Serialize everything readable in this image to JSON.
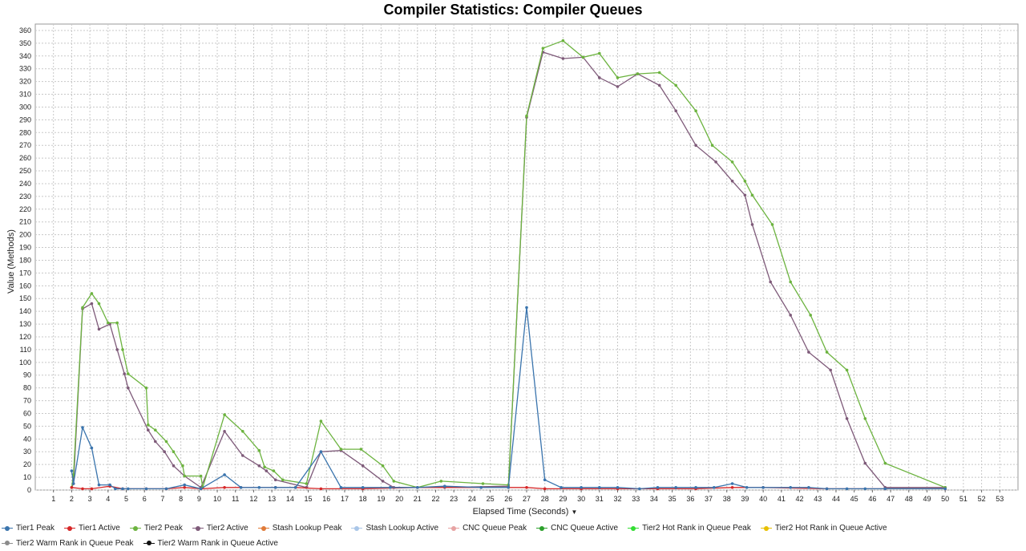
{
  "chart_data": {
    "type": "line",
    "title": "Compiler Statistics: Compiler Queues",
    "xlabel": "Elapsed Time (Seconds)",
    "ylabel": "Value (Methods)",
    "xlim": [
      0,
      54
    ],
    "ylim": [
      0,
      365
    ],
    "xticks": [
      1,
      2,
      3,
      4,
      5,
      6,
      7,
      8,
      9,
      10,
      11,
      12,
      13,
      14,
      15,
      16,
      17,
      18,
      19,
      20,
      21,
      22,
      23,
      24,
      25,
      26,
      27,
      28,
      29,
      30,
      31,
      32,
      33,
      34,
      35,
      36,
      37,
      38,
      39,
      40,
      41,
      42,
      43,
      44,
      45,
      46,
      47,
      48,
      49,
      50,
      51,
      52,
      53
    ],
    "yticks": [
      0,
      10,
      20,
      30,
      40,
      50,
      60,
      70,
      80,
      90,
      100,
      110,
      120,
      130,
      140,
      150,
      160,
      170,
      180,
      190,
      200,
      210,
      220,
      230,
      240,
      250,
      260,
      270,
      280,
      290,
      300,
      310,
      320,
      330,
      340,
      350,
      360
    ],
    "grid": true,
    "legend_position": "bottom",
    "series": [
      {
        "name": "Tier1 Peak",
        "color": "#3a74ad",
        "points": [
          [
            2.0,
            15
          ],
          [
            2.1,
            5
          ],
          [
            2.6,
            49
          ],
          [
            3.1,
            33
          ],
          [
            3.5,
            4
          ],
          [
            4.1,
            4
          ],
          [
            4.4,
            1
          ],
          [
            4.8,
            1
          ],
          [
            5.1,
            1
          ],
          [
            6.1,
            1
          ],
          [
            7.2,
            1
          ],
          [
            8.2,
            4
          ],
          [
            9.1,
            1
          ],
          [
            10.4,
            12
          ],
          [
            11.3,
            2
          ],
          [
            12.3,
            2
          ],
          [
            13.2,
            2
          ],
          [
            14.3,
            2
          ],
          [
            15.7,
            30
          ],
          [
            16.8,
            2
          ],
          [
            18,
            2
          ],
          [
            19.5,
            2
          ],
          [
            21,
            2
          ],
          [
            22.5,
            3
          ],
          [
            24.5,
            2
          ],
          [
            26,
            2
          ],
          [
            27,
            143
          ],
          [
            28,
            8
          ],
          [
            28.9,
            2
          ],
          [
            30,
            2
          ],
          [
            31,
            2
          ],
          [
            32,
            2
          ],
          [
            33.2,
            1
          ],
          [
            34.2,
            2
          ],
          [
            35.2,
            2
          ],
          [
            36.3,
            2
          ],
          [
            37.3,
            2
          ],
          [
            38.3,
            5
          ],
          [
            39.1,
            2
          ],
          [
            40,
            2
          ],
          [
            41.5,
            2
          ],
          [
            42.5,
            2
          ],
          [
            43.5,
            1
          ],
          [
            44.6,
            1
          ],
          [
            45.6,
            1
          ],
          [
            46.7,
            1
          ],
          [
            50,
            1
          ]
        ]
      },
      {
        "name": "Tier1 Active",
        "color": "#d62728",
        "points": [
          [
            2.0,
            2
          ],
          [
            2.6,
            1
          ],
          [
            3.1,
            1
          ],
          [
            4.1,
            3
          ],
          [
            4.8,
            1
          ],
          [
            6.1,
            1
          ],
          [
            7.2,
            1
          ],
          [
            8.2,
            2
          ],
          [
            9.1,
            1
          ],
          [
            10.4,
            2
          ],
          [
            11.3,
            2
          ],
          [
            13.2,
            2
          ],
          [
            14.3,
            2
          ],
          [
            15.7,
            1
          ],
          [
            18,
            1
          ],
          [
            21,
            2
          ],
          [
            24.5,
            2
          ],
          [
            26,
            2
          ],
          [
            27,
            2
          ],
          [
            28,
            1
          ],
          [
            30,
            1
          ],
          [
            32,
            1
          ],
          [
            34.2,
            1
          ],
          [
            36.3,
            1
          ],
          [
            38.3,
            2
          ],
          [
            40,
            2
          ],
          [
            43.5,
            1
          ],
          [
            46.7,
            1
          ],
          [
            50,
            1
          ]
        ]
      },
      {
        "name": "Tier2 Peak",
        "color": "#6cb33f",
        "points": [
          [
            2.0,
            2
          ],
          [
            2.1,
            12
          ],
          [
            2.6,
            143
          ],
          [
            3.1,
            154
          ],
          [
            3.5,
            146
          ],
          [
            4.0,
            131
          ],
          [
            4.5,
            131
          ],
          [
            4.8,
            110
          ],
          [
            5.1,
            91
          ],
          [
            6.1,
            80
          ],
          [
            6.2,
            51
          ],
          [
            6.6,
            47
          ],
          [
            7.2,
            38
          ],
          [
            7.6,
            30
          ],
          [
            8.1,
            19
          ],
          [
            8.2,
            11
          ],
          [
            9.1,
            11
          ],
          [
            9.2,
            2
          ],
          [
            10.4,
            59
          ],
          [
            11.4,
            46
          ],
          [
            12.3,
            31
          ],
          [
            12.6,
            18
          ],
          [
            13.1,
            15
          ],
          [
            13.6,
            8
          ],
          [
            14.9,
            5
          ],
          [
            15.7,
            54
          ],
          [
            16.8,
            32
          ],
          [
            17.9,
            32
          ],
          [
            19.1,
            19
          ],
          [
            19.7,
            7
          ],
          [
            21,
            2
          ],
          [
            22.3,
            7
          ],
          [
            24.6,
            5
          ],
          [
            26,
            4
          ],
          [
            27,
            293
          ],
          [
            27.9,
            346
          ],
          [
            29,
            352
          ],
          [
            30.1,
            339
          ],
          [
            31,
            342
          ],
          [
            32,
            323
          ],
          [
            33.1,
            326
          ],
          [
            34.3,
            327
          ],
          [
            35.2,
            317
          ],
          [
            36.3,
            297
          ],
          [
            37.2,
            270
          ],
          [
            38.3,
            257
          ],
          [
            39,
            242
          ],
          [
            39.4,
            231
          ],
          [
            40.5,
            208
          ],
          [
            41.5,
            163
          ],
          [
            42.6,
            137
          ],
          [
            43.5,
            108
          ],
          [
            44.6,
            94
          ],
          [
            45.6,
            56
          ],
          [
            46.7,
            21
          ],
          [
            50,
            2
          ]
        ]
      },
      {
        "name": "Tier2 Active",
        "color": "#7e5a79",
        "points": [
          [
            2.0,
            2
          ],
          [
            2.1,
            5
          ],
          [
            2.6,
            142
          ],
          [
            3.1,
            146
          ],
          [
            3.5,
            126
          ],
          [
            4.1,
            130
          ],
          [
            4.5,
            110
          ],
          [
            4.9,
            91
          ],
          [
            5.1,
            80
          ],
          [
            6.2,
            47
          ],
          [
            6.6,
            38
          ],
          [
            7.1,
            30
          ],
          [
            7.6,
            19
          ],
          [
            8.2,
            11
          ],
          [
            9.1,
            2
          ],
          [
            10.4,
            46
          ],
          [
            11.4,
            27
          ],
          [
            12.3,
            19
          ],
          [
            12.7,
            15
          ],
          [
            13.2,
            8
          ],
          [
            14.9,
            2
          ],
          [
            15.7,
            30
          ],
          [
            16.8,
            31
          ],
          [
            18,
            19
          ],
          [
            19.1,
            7
          ],
          [
            19.7,
            2
          ],
          [
            22.5,
            2
          ],
          [
            26,
            3
          ],
          [
            27,
            292
          ],
          [
            27.9,
            343
          ],
          [
            29,
            338
          ],
          [
            30.1,
            339
          ],
          [
            31,
            323
          ],
          [
            32,
            316
          ],
          [
            33.1,
            326
          ],
          [
            34.3,
            317
          ],
          [
            35.2,
            297
          ],
          [
            36.3,
            270
          ],
          [
            37.4,
            257
          ],
          [
            38.3,
            242
          ],
          [
            39,
            231
          ],
          [
            39.4,
            208
          ],
          [
            40.4,
            163
          ],
          [
            41.5,
            137
          ],
          [
            42.5,
            108
          ],
          [
            43.7,
            94
          ],
          [
            44.6,
            56
          ],
          [
            45.6,
            21
          ],
          [
            46.7,
            2
          ],
          [
            50,
            2
          ]
        ]
      },
      {
        "name": "Stash Lookup Peak",
        "color": "#e07b39",
        "points": []
      },
      {
        "name": "Stash Lookup Active",
        "color": "#a9c6e8",
        "points": []
      },
      {
        "name": "CNC Queue Peak",
        "color": "#e7a3a3",
        "points": []
      },
      {
        "name": "CNC Queue Active",
        "color": "#2ca02c",
        "points": []
      },
      {
        "name": "Tier2 Hot Rank in Queue Peak",
        "color": "#33dd33",
        "points": []
      },
      {
        "name": "Tier2 Hot Rank in Queue Active",
        "color": "#e8c000",
        "points": []
      },
      {
        "name": "Tier2 Warm Rank in Queue Peak",
        "color": "#8c8c8c",
        "points": []
      },
      {
        "name": "Tier2 Warm Rank in Queue Active",
        "color": "#111111",
        "points": []
      }
    ]
  }
}
